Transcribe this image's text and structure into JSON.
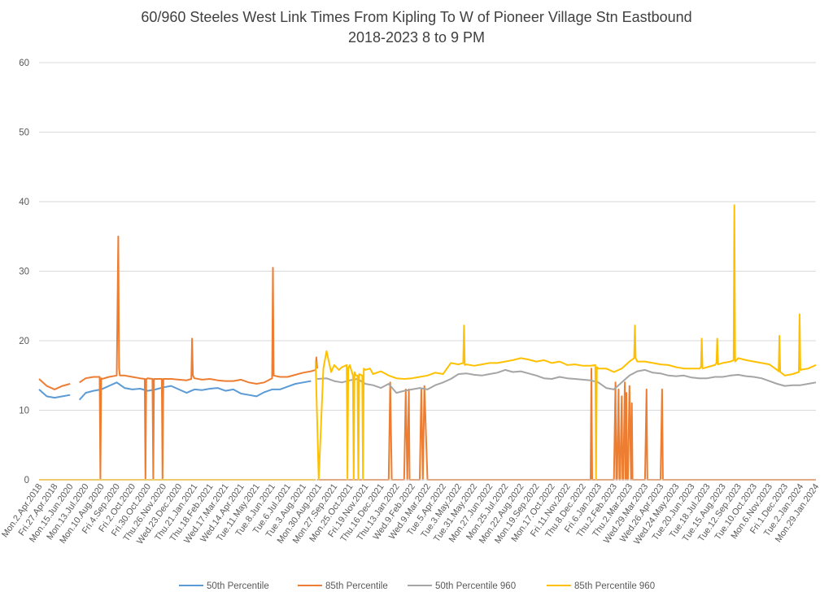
{
  "chart_data": {
    "type": "line",
    "title_line1": "60/960 Steeles West Link Times From Kipling To W of Pioneer Village Stn Eastbound",
    "title_line2": "2018-2023 8 to 9 PM",
    "xlabel": "",
    "ylabel": "",
    "ylim": [
      0,
      60
    ],
    "yticks": [
      "0",
      "10",
      "20",
      "30",
      "40",
      "50",
      "60"
    ],
    "grid": "horizontal",
    "legend_position": "bottom",
    "x_tick_labels": [
      "Mon.2.Apr.2018",
      "Fri.27.Apr.2018",
      "Mon.15.Jun.2020",
      "Mon.13.Jul.2020",
      "Mon.10.Aug.2020",
      "Fri.4.Sep.2020",
      "Fri.2.Oct.2020",
      "Fri.30.Oct.2020",
      "Thu.26.Nov.2020",
      "Wed.23.Dec.2020",
      "Thu.21.Jan.2021",
      "Thu.18.Feb.2021",
      "Wed.17.Mar.2021",
      "Wed.14.Apr.2021",
      "Tue.11.May.2021",
      "Tue.8.Jun.2021",
      "Tue.6.Jul.2021",
      "Tue.3.Aug.2021",
      "Mon.30.Aug.2021",
      "Mon.27.Sep.2021",
      "Mon.25.Oct.2021",
      "Fri.19.Nov.2021",
      "Thu.16.Dec.2021",
      "Thu.13.Jan.2022",
      "Wed.9.Feb.2022",
      "Wed.9.Mar.2022",
      "Tue.5.Apr.2022",
      "Tue.3.May.2022",
      "Tue.31.May.2022",
      "Mon.27.Jun.2022",
      "Mon.25.Jul.2022",
      "Mon.22.Aug.2022",
      "Mon.19.Sep.2022",
      "Mon.17.Oct.2022",
      "Fri.11.Nov.2022",
      "Thu.8.Dec.2022",
      "Fri.6.Jan.2023",
      "Thu.2.Feb.2023",
      "Thu.2.Mar.2023",
      "Wed.29.Mar.2023",
      "Wed.26.Apr.2023",
      "Wed.24.May.2023",
      "Tue.20.Jun.2023",
      "Tue.18.Jul.2023",
      "Tue.15.Aug.2023",
      "Tue.12.Sep.2023",
      "Tue.10.Oct.2023",
      "Mon.6.Nov.2023",
      "Fri.1.Dec.2023",
      "Tue.2.Jan.2024",
      "Mon.29.Jan.2024"
    ],
    "series": [
      {
        "name": "50th Percentile",
        "color": "#5b9bd5",
        "segments": [
          {
            "x": [
              0.0,
              0.5,
              1.0,
              1.5,
              2.0
            ],
            "y": [
              13.0,
              12.0,
              11.8,
              12.0,
              12.2
            ]
          },
          {
            "x": [
              2.6,
              3.0,
              3.5,
              4.0,
              4.5,
              5.0,
              5.5,
              6.0,
              6.5,
              7.0,
              7.5,
              8.0,
              8.5,
              9.0,
              9.5,
              10.0,
              10.5,
              11.0,
              11.5,
              12.0,
              12.5,
              13.0,
              13.5,
              14.0,
              14.5,
              15.0,
              15.5,
              16.0,
              16.5,
              17.0,
              17.5
            ],
            "y": [
              11.5,
              12.5,
              12.8,
              13.0,
              13.5,
              14.0,
              13.2,
              13.0,
              13.1,
              12.8,
              13.0,
              13.3,
              13.5,
              13.0,
              12.5,
              13.0,
              12.9,
              13.1,
              13.2,
              12.8,
              13.0,
              12.4,
              12.2,
              12.0,
              12.6,
              13.0,
              13.0,
              13.4,
              13.8,
              14.0,
              14.2
            ]
          }
        ]
      },
      {
        "name": "85th Percentile",
        "color": "#ed7d31",
        "segments": [
          {
            "x": [
              0.0,
              0.5,
              1.0,
              1.5,
              2.0
            ],
            "y": [
              14.5,
              13.5,
              13.0,
              13.5,
              13.8
            ]
          },
          {
            "x": [
              2.6,
              3.0,
              3.5,
              3.9,
              3.95,
              4.0,
              4.05,
              4.5,
              5.0,
              5.1,
              5.15,
              5.2,
              5.5,
              6.0,
              6.5,
              6.8,
              6.85,
              6.9,
              7.0,
              7.3,
              7.35,
              7.4,
              7.5,
              7.9,
              7.95,
              8.0,
              8.5,
              9.0,
              9.5,
              9.8,
              9.85,
              9.9,
              10.0,
              10.5,
              11.0,
              11.5,
              12.0,
              12.5,
              13.0,
              13.5,
              14.0,
              14.5,
              15.0,
              15.05,
              15.1,
              15.5,
              16.0,
              16.5,
              17.0,
              17.5,
              17.8,
              17.85,
              17.9
            ],
            "y": [
              14.0,
              14.6,
              14.8,
              14.8,
              0.0,
              14.6,
              14.5,
              14.8,
              15.0,
              35.0,
              16.0,
              15.0,
              15.0,
              14.8,
              14.6,
              14.5,
              0.0,
              14.5,
              14.6,
              14.5,
              0.0,
              14.5,
              14.5,
              14.5,
              0.0,
              14.5,
              14.5,
              14.4,
              14.3,
              14.5,
              20.3,
              15.0,
              14.6,
              14.4,
              14.5,
              14.3,
              14.2,
              14.2,
              14.4,
              14.0,
              13.8,
              14.0,
              14.6,
              30.5,
              15.0,
              14.8,
              14.8,
              15.1,
              15.4,
              15.6,
              15.8,
              17.6,
              16.0
            ]
          },
          {
            "x": [
              17.9,
              18.5,
              19.0,
              19.5,
              20.0,
              20.5,
              21.0,
              21.5,
              22.0,
              22.5,
              22.6,
              22.7,
              23.0,
              23.5,
              23.6,
              23.7,
              23.8,
              23.85,
              24.0,
              24.5,
              24.6,
              24.7,
              24.8,
              25.0,
              26.0,
              27.0,
              28.0,
              29.0,
              30.0,
              31.0,
              32.0,
              33.0,
              34.0,
              35.0,
              35.5,
              35.55,
              35.6,
              36.0,
              36.5,
              37.0,
              37.1,
              37.15,
              37.2,
              37.3,
              37.35,
              37.4,
              37.5,
              37.55,
              37.6,
              37.7,
              37.75,
              37.8,
              37.85,
              37.9,
              38.0,
              38.1,
              38.15,
              38.2,
              39.0,
              39.1,
              39.15,
              39.2,
              40.0,
              40.1,
              40.15,
              40.2,
              41.0,
              42.0,
              43.0,
              44.0,
              45.0,
              46.0,
              47.0,
              48.0,
              49.0,
              50.0
            ],
            "y": [
              0.0,
              0.0,
              0.0,
              0.0,
              0.0,
              0.0,
              0.0,
              0.0,
              0.0,
              0.0,
              14.0,
              0.0,
              0.0,
              0.0,
              13.0,
              0.0,
              13.0,
              0.0,
              0.0,
              0.0,
              13.0,
              0.0,
              13.5,
              0.0,
              0.0,
              0.0,
              0.0,
              0.0,
              0.0,
              0.0,
              0.0,
              0.0,
              0.0,
              0.0,
              0.0,
              16.0,
              0.0,
              0.0,
              0.0,
              0.0,
              14.0,
              0.0,
              0.0,
              13.0,
              0.0,
              0.0,
              12.0,
              0.0,
              0.0,
              14.0,
              0.0,
              12.5,
              0.0,
              0.0,
              13.5,
              0.0,
              11.0,
              0.0,
              0.0,
              13.0,
              0.0,
              0.0,
              0.0,
              13.0,
              0.0,
              0.0,
              0.0,
              0.0,
              0.0,
              0.0,
              0.0,
              0.0,
              0.0,
              0.0,
              0.0,
              0.0
            ]
          }
        ]
      },
      {
        "name": "50th Percentile 960",
        "color": "#a5a5a5",
        "segments": [
          {
            "x": [
              17.9,
              18.5,
              19.0,
              19.5,
              20.0,
              20.5,
              21.0,
              21.5,
              22.0,
              22.5,
              23.0,
              23.5,
              24.0,
              24.5,
              25.0,
              25.5,
              26.0,
              26.5,
              27.0,
              27.5,
              28.0,
              28.5,
              29.0,
              29.5,
              30.0,
              30.5,
              31.0,
              31.5,
              32.0,
              32.5,
              33.0,
              33.5,
              34.0,
              34.5,
              35.0,
              35.5,
              36.0,
              36.5,
              37.0,
              37.5,
              38.0,
              38.5,
              39.0,
              39.5,
              40.0,
              40.5,
              41.0,
              41.5,
              42.0,
              42.5,
              43.0,
              43.5,
              44.0,
              44.5,
              45.0,
              45.5,
              46.0,
              46.5,
              47.0,
              47.5,
              48.0,
              48.5,
              49.0,
              49.5,
              50.0
            ],
            "y": [
              14.5,
              14.6,
              14.2,
              14.0,
              14.3,
              14.5,
              13.8,
              13.6,
              13.2,
              13.8,
              12.5,
              12.8,
              13.0,
              13.2,
              13.0,
              13.6,
              14.0,
              14.5,
              15.2,
              15.3,
              15.1,
              15.0,
              15.2,
              15.4,
              15.8,
              15.5,
              15.6,
              15.3,
              15.0,
              14.6,
              14.5,
              14.8,
              14.6,
              14.5,
              14.4,
              14.3,
              14.0,
              13.2,
              13.0,
              14.0,
              15.0,
              15.6,
              15.8,
              15.4,
              15.3,
              15.0,
              14.9,
              15.0,
              14.7,
              14.6,
              14.6,
              14.8,
              14.8,
              15.0,
              15.1,
              14.9,
              14.8,
              14.6,
              14.2,
              13.8,
              13.5,
              13.6,
              13.6,
              13.8,
              14.0
            ]
          }
        ]
      },
      {
        "name": "85th Percentile 960",
        "color": "#ffc000",
        "segments": [
          {
            "x": [
              0.0,
              2.0,
              4.0,
              6.0,
              8.0,
              10.0,
              12.0,
              14.0,
              16.0,
              17.8
            ],
            "y": [
              0.0,
              0.0,
              0.0,
              0.0,
              0.0,
              0.0,
              0.0,
              0.0,
              0.0,
              0.0
            ]
          },
          {
            "x": [
              17.8,
              18.0,
              18.3,
              18.5,
              18.8,
              19.0,
              19.3,
              19.5,
              19.8,
              19.85,
              19.9,
              20.0,
              20.2,
              20.25,
              20.3,
              20.4,
              20.5,
              20.55,
              20.6,
              20.8,
              20.85,
              20.9,
              21.0,
              21.3,
              21.5,
              22.0,
              22.5,
              23.0,
              23.5,
              24.0,
              24.5,
              25.0,
              25.5,
              26.0,
              26.5,
              27.0,
              27.3,
              27.35,
              27.4,
              27.5,
              28.0,
              28.5,
              29.0,
              29.5,
              30.0,
              30.5,
              31.0,
              31.5,
              32.0,
              32.5,
              33.0,
              33.5,
              34.0,
              34.5,
              35.0,
              35.5,
              35.8,
              35.85,
              35.9,
              36.0,
              36.5,
              37.0,
              37.5,
              38.0,
              38.3,
              38.35,
              38.4,
              38.5,
              39.0,
              39.5,
              40.0,
              40.5,
              41.0,
              41.5,
              42.0,
              42.5,
              42.6,
              42.65,
              42.7,
              43.0,
              43.5,
              43.6,
              43.65,
              43.7,
              44.0,
              44.5,
              44.7,
              44.75,
              44.8,
              45.0,
              45.5,
              46.0,
              46.5,
              47.0,
              47.5,
              47.6,
              47.65,
              47.7,
              48.0,
              48.5,
              48.9,
              48.95,
              49.0,
              49.5,
              50.0
            ],
            "y": [
              17.0,
              0.0,
              16.0,
              18.5,
              15.5,
              16.5,
              15.8,
              16.2,
              16.5,
              0.0,
              16.0,
              16.5,
              15.0,
              0.0,
              15.5,
              15.0,
              15.0,
              0.0,
              15.2,
              15.0,
              0.0,
              16.0,
              15.8,
              16.0,
              15.2,
              15.6,
              15.0,
              14.6,
              14.5,
              14.6,
              14.8,
              15.0,
              15.4,
              15.2,
              16.8,
              16.6,
              16.8,
              22.2,
              16.5,
              16.6,
              16.4,
              16.6,
              16.8,
              16.8,
              17.0,
              17.2,
              17.5,
              17.3,
              17.0,
              17.2,
              16.8,
              17.0,
              16.5,
              16.6,
              16.4,
              16.4,
              16.5,
              0.0,
              16.2,
              16.0,
              16.0,
              15.5,
              16.0,
              17.0,
              17.5,
              22.2,
              17.5,
              17.0,
              17.0,
              16.8,
              16.6,
              16.5,
              16.2,
              16.0,
              16.0,
              16.0,
              16.2,
              20.3,
              16.0,
              16.2,
              16.5,
              16.8,
              20.3,
              16.6,
              16.8,
              17.0,
              17.2,
              39.5,
              17.0,
              17.5,
              17.2,
              17.0,
              16.8,
              16.6,
              15.8,
              15.6,
              20.7,
              15.5,
              15.0,
              15.2,
              15.5,
              23.8,
              15.8,
              16.0,
              16.5
            ]
          }
        ]
      }
    ]
  }
}
